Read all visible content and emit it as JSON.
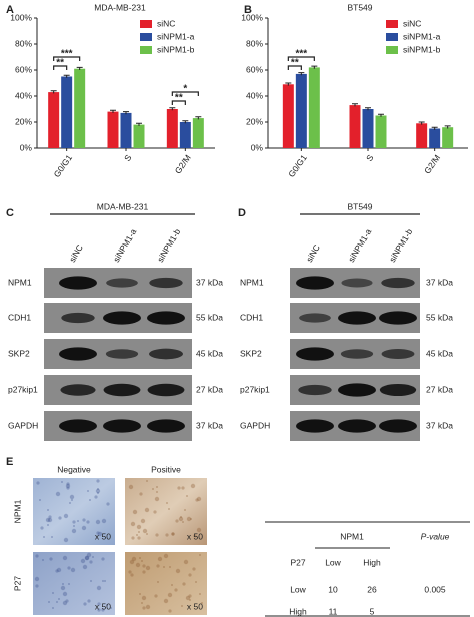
{
  "chart_data": [
    {
      "type": "bar",
      "title": "MDA-MB-231",
      "categories": [
        "G0/G1",
        "S",
        "G2/M"
      ],
      "series": [
        {
          "name": "siNC",
          "color": "#e3202b",
          "values": [
            43,
            28,
            30
          ],
          "errors": [
            1,
            1,
            1
          ]
        },
        {
          "name": "siNPM1-a",
          "color": "#2a4d9e",
          "values": [
            55,
            27,
            20
          ],
          "errors": [
            1,
            1,
            1
          ]
        },
        {
          "name": "siNPM1-b",
          "color": "#6cc04a",
          "values": [
            61,
            18,
            23
          ],
          "errors": [
            1,
            1,
            1
          ]
        }
      ],
      "ylim": [
        0,
        100
      ],
      "yticks": [
        {
          "value": 0,
          "label": "0%"
        },
        {
          "value": 20,
          "label": "20%"
        },
        {
          "value": 40,
          "label": "40%"
        },
        {
          "value": 60,
          "label": "60%"
        },
        {
          "value": 80,
          "label": "80%"
        },
        {
          "value": 100,
          "label": "100%"
        }
      ],
      "annotations": [
        "**",
        "***",
        "**",
        "*"
      ],
      "legend": "upper right"
    },
    {
      "type": "bar",
      "title": "BT549",
      "categories": [
        "G0/G1",
        "S",
        "G2/M"
      ],
      "series": [
        {
          "name": "siNC",
          "color": "#e3202b",
          "values": [
            49,
            33,
            19
          ],
          "errors": [
            1,
            1,
            1
          ]
        },
        {
          "name": "siNPM1-a",
          "color": "#2a4d9e",
          "values": [
            57,
            30,
            15
          ],
          "errors": [
            1,
            1,
            1
          ]
        },
        {
          "name": "siNPM1-b",
          "color": "#6cc04a",
          "values": [
            62,
            25,
            16
          ],
          "errors": [
            1,
            1,
            1
          ]
        }
      ],
      "ylim": [
        0,
        100
      ],
      "yticks": [
        {
          "value": 0,
          "label": "0%"
        },
        {
          "value": 20,
          "label": "20%"
        },
        {
          "value": 40,
          "label": "40%"
        },
        {
          "value": 60,
          "label": "60%"
        },
        {
          "value": 80,
          "label": "80%"
        },
        {
          "value": 100,
          "label": "100%"
        }
      ],
      "annotations": [
        "**",
        "***"
      ],
      "legend": "upper right"
    }
  ],
  "panel_labels": [
    "A",
    "B",
    "C",
    "D",
    "E"
  ],
  "blots": [
    {
      "title": "MDA-MB-231",
      "lanes": [
        "siNC",
        "siNPM1-a",
        "siNPM1-b"
      ],
      "rows": [
        {
          "protein": "NPM1",
          "size": "37 kDa"
        },
        {
          "protein": "CDH1",
          "size": "55 kDa"
        },
        {
          "protein": "SKP2",
          "size": "45 kDa"
        },
        {
          "protein": "p27kip1",
          "size": "27 kDa"
        },
        {
          "protein": "GAPDH",
          "size": "37 kDa"
        }
      ]
    },
    {
      "title": "BT549",
      "lanes": [
        "siNC",
        "siNPM1-a",
        "siNPM1-b"
      ],
      "rows": [
        {
          "protein": "NPM1",
          "size": "37 kDa"
        },
        {
          "protein": "CDH1",
          "size": "55 kDa"
        },
        {
          "protein": "SKP2",
          "size": "45 kDa"
        },
        {
          "protein": "p27kip1",
          "size": "27 kDa"
        },
        {
          "protein": "GAPDH",
          "size": "37 kDa"
        }
      ]
    }
  ],
  "ihc": {
    "columns": [
      "Negative",
      "Positive"
    ],
    "rows": [
      "NPM1",
      "P27"
    ],
    "magnification": [
      "x 50",
      "x 50",
      "x 50",
      "x 50"
    ]
  },
  "table": {
    "header": [
      "NPM1",
      "P-value"
    ],
    "subheader": [
      "P27",
      "Low",
      "High"
    ],
    "rows": [
      [
        "Low",
        "10",
        "26",
        "0.005"
      ],
      [
        "High",
        "11",
        "5"
      ]
    ]
  }
}
